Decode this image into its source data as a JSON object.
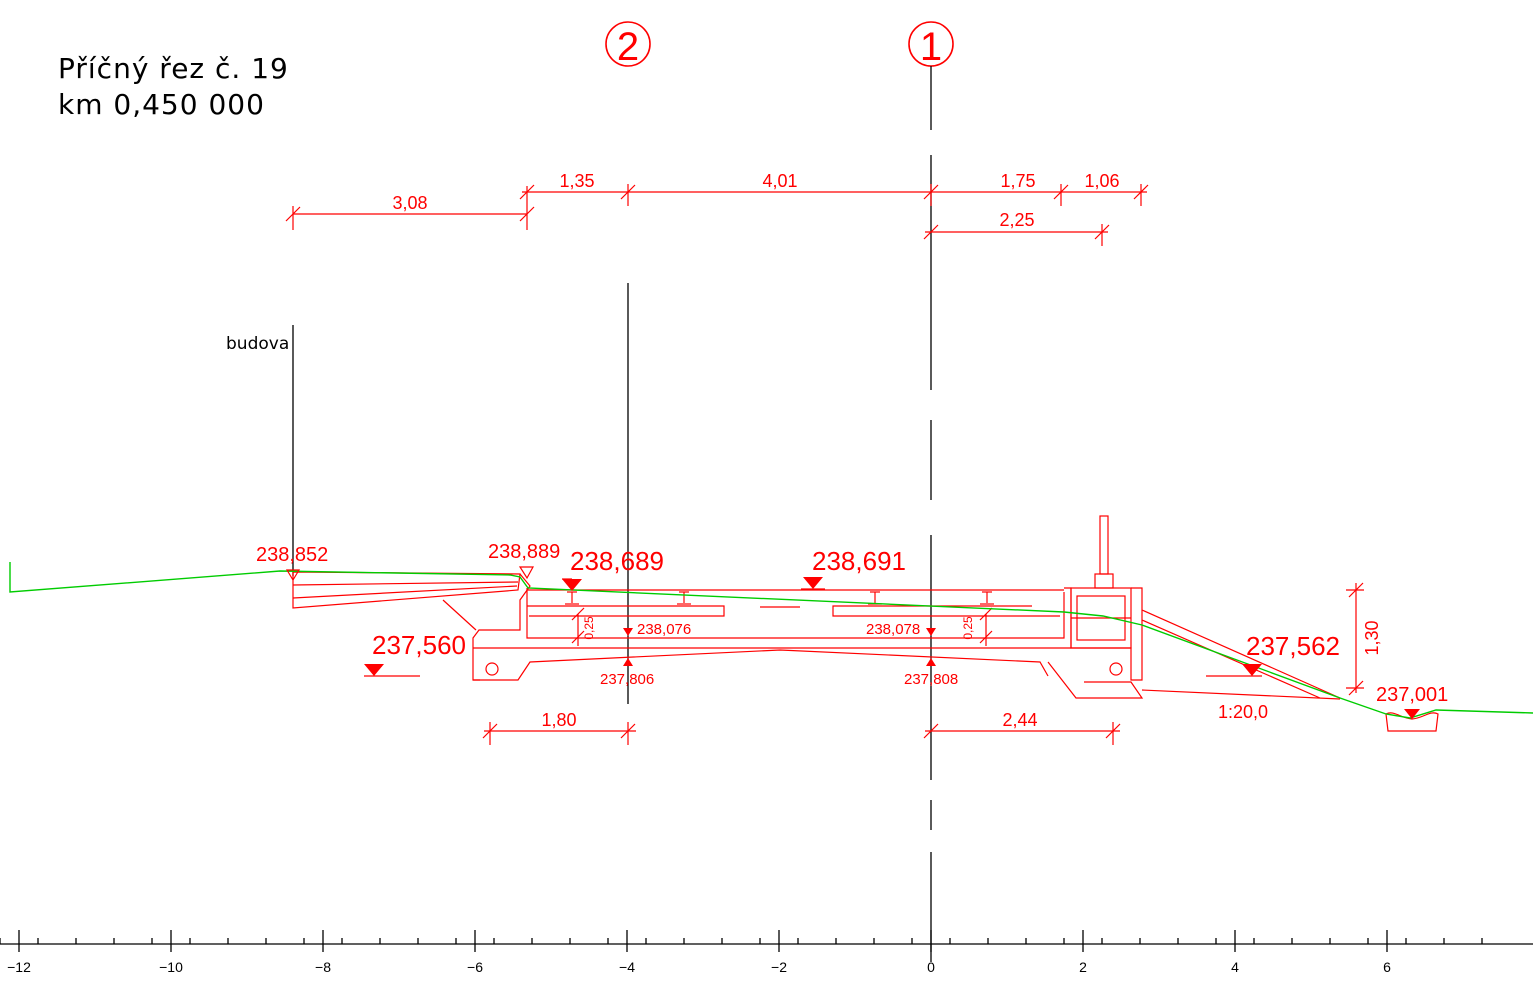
{
  "title": {
    "line1": "Příčný řez č. 19",
    "line2": "km 0,450 000"
  },
  "markers": {
    "marker_1": "1",
    "marker_2": "2"
  },
  "labels": {
    "building": "budova",
    "slope_ratio": "1:20,0"
  },
  "dimensions": {
    "d_308": "3,08",
    "d_135": "1,35",
    "d_401": "4,01",
    "d_175": "1,75",
    "d_106": "1,06",
    "d_225": "2,25",
    "d_180": "1,80",
    "d_244": "2,44",
    "d_130": "1,30",
    "d_025_left": "0,25",
    "d_025_right": "0,25"
  },
  "elevations": {
    "e_238852": "238,852",
    "e_238889": "238,889",
    "e_238689": "238,689",
    "e_238691": "238,691",
    "e_237560": "237,560",
    "e_238076": "238,076",
    "e_238078": "238,078",
    "e_237806": "237,806",
    "e_237808": "237,808",
    "e_237562": "237,562",
    "e_237001": "237,001"
  },
  "axis": {
    "ticks": [
      "-12",
      "-10",
      "-8",
      "-6",
      "-4",
      "-2",
      "0",
      "2",
      "4",
      "6"
    ]
  },
  "colors": {
    "design_lines": "#ff0000",
    "terrain_line": "#00cc00",
    "reference_lines": "#000000"
  }
}
